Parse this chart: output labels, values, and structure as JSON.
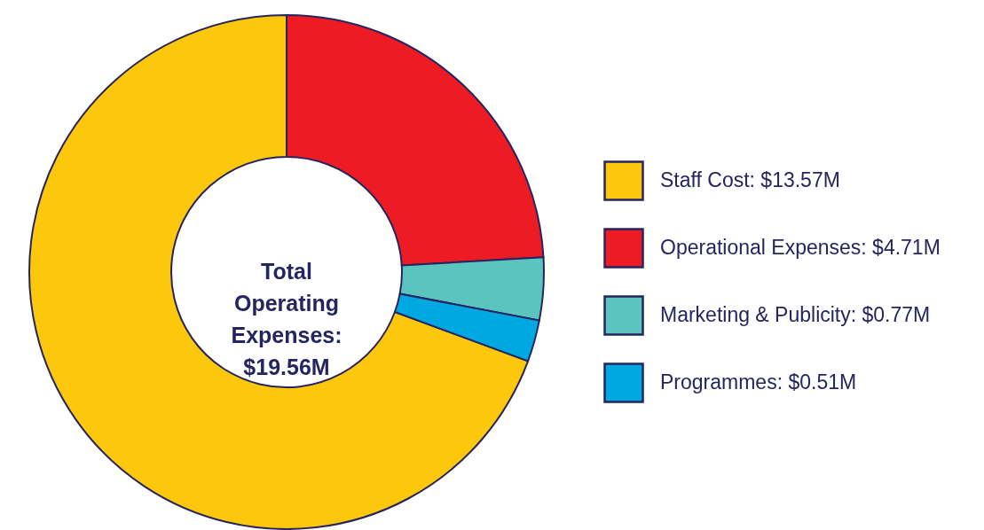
{
  "chart_data": {
    "type": "donut",
    "categories": [
      "Staff Cost: $13.57M",
      "Operational Expenses: $4.71M",
      "Marketing & Publicity: $0.77M",
      "Programmes: $0.51M"
    ],
    "values": [
      13.57,
      4.71,
      0.77,
      0.51
    ],
    "colors": [
      "#fdc70c",
      "#ed1c24",
      "#5bc4bf",
      "#00a8e2"
    ],
    "annotations": [
      "Total Operating Expenses: $19.56M"
    ],
    "legend": "right"
  }
}
